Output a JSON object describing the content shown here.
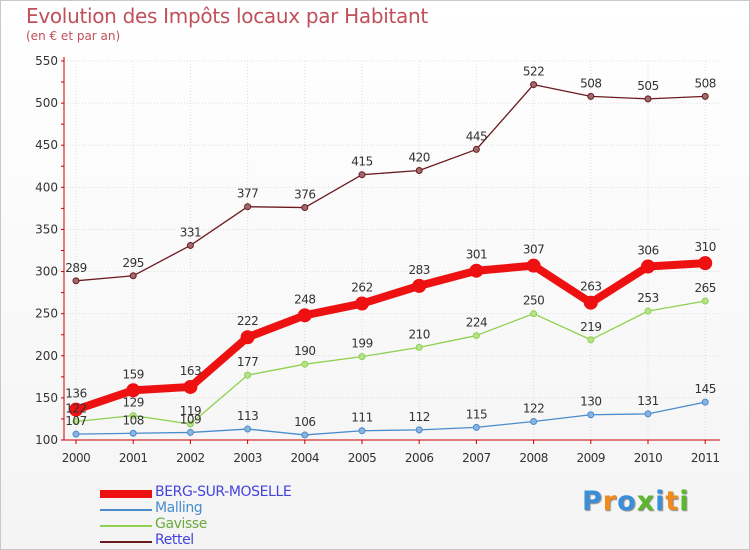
{
  "title": "Evolution des Impôts locaux par Habitant",
  "subtitle": "(en € et par an)",
  "logo": {
    "text": "Proxiti",
    "letters": [
      {
        "ch": "P",
        "color": "#3a8fd8"
      },
      {
        "ch": "r",
        "color": "#f08a1c"
      },
      {
        "ch": "o",
        "color": "#3a8fd8"
      },
      {
        "ch": "x",
        "color": "#5bb82a"
      },
      {
        "ch": "i",
        "color": "#3a8fd8"
      },
      {
        "ch": "t",
        "color": "#f08a1c"
      },
      {
        "ch": "i",
        "color": "#5bb82a"
      }
    ]
  },
  "chart_data": {
    "type": "line",
    "title": "Evolution des Impôts locaux par Habitant",
    "subtitle": "(en € et par an)",
    "xlabel": "",
    "ylabel": "",
    "ylim": [
      100,
      550
    ],
    "yticks": [
      100,
      150,
      200,
      250,
      300,
      350,
      400,
      450,
      500,
      550
    ],
    "grid": true,
    "legend_position": "bottom-left",
    "x": [
      "2000",
      "2001",
      "2002",
      "2003",
      "2004",
      "2005",
      "2006",
      "2007",
      "2008",
      "2009",
      "2010",
      "2011"
    ],
    "series": [
      {
        "name": "Rettel",
        "color": "#6b1a1f",
        "values": [
          289,
          295,
          331,
          377,
          376,
          415,
          420,
          445,
          522,
          508,
          505,
          508
        ],
        "labels": [
          "289",
          "295",
          "331",
          "377",
          "376",
          "415",
          "420",
          "445",
          "522",
          "508",
          "505",
          "508"
        ]
      },
      {
        "name": "Gavisse",
        "color": "#8fd14f",
        "values": [
          122,
          129,
          119,
          177,
          190,
          199,
          210,
          224,
          250,
          219,
          253,
          265
        ],
        "labels": [
          "122",
          "129",
          "119",
          "177",
          "190",
          "199",
          "210",
          "224",
          "250",
          "219",
          "253",
          "265"
        ]
      },
      {
        "name": "Malling",
        "color": "#4a8ccc",
        "values": [
          107,
          108,
          109,
          113,
          106,
          111,
          112,
          115,
          122,
          130,
          131,
          145
        ],
        "labels": [
          "107",
          "108",
          "109",
          "113",
          "106",
          "111",
          "112",
          "115",
          "122",
          "130",
          "131",
          "145"
        ]
      },
      {
        "name": "BERG-SUR-MOSELLE",
        "color": "#ee1111",
        "values": [
          136,
          159,
          163,
          222,
          248,
          262,
          283,
          301,
          307,
          263,
          306,
          310
        ],
        "labels": [
          "136",
          "159",
          "163",
          "222",
          "248",
          "262",
          "283",
          "301",
          "307",
          "263",
          "306",
          "310"
        ]
      }
    ],
    "legend": [
      {
        "name": "BERG-SUR-MOSELLE",
        "color": "#ee1111",
        "text_color": "#4444dd"
      },
      {
        "name": "Malling",
        "color": "#4a8ccc",
        "text_color": "#4a8ccc"
      },
      {
        "name": "Gavisse",
        "color": "#8fd14f",
        "text_color": "#6aaa3a"
      },
      {
        "name": "Rettel",
        "color": "#6b1a1f",
        "text_color": "#4444dd"
      }
    ]
  }
}
